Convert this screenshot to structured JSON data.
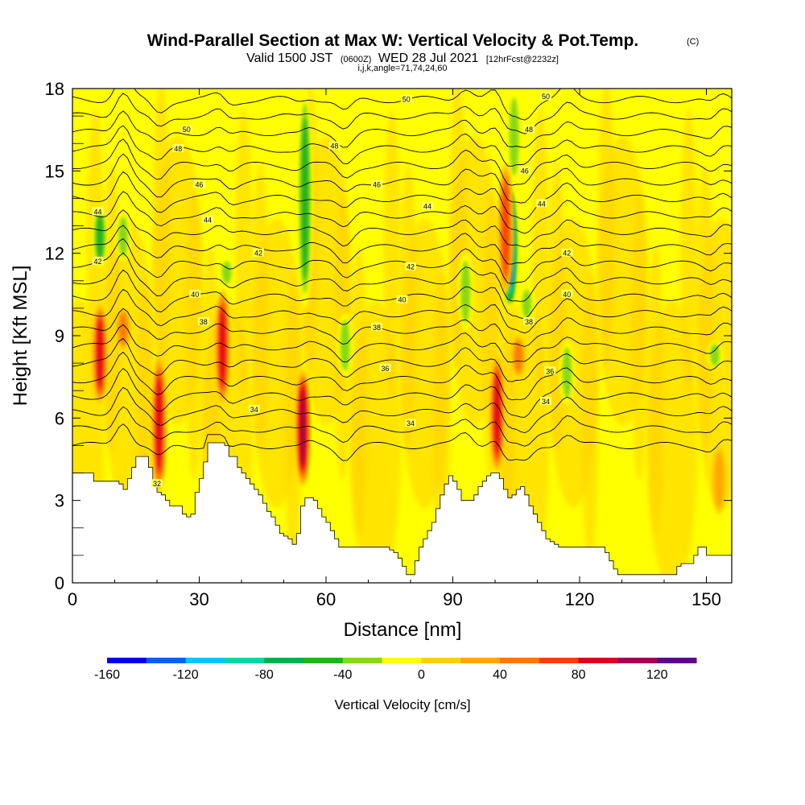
{
  "header": {
    "title_main": "Wind-Parallel Section at Max W: Vertical Velocity & Pot.Temp.",
    "title_mark": "(C)",
    "subtitle_a": "Valid 1500 JST",
    "subtitle_b": "(0600Z)",
    "subtitle_c": "WED 28 Jul 2021",
    "subtitle_d": "[12hrFcst@2232z]",
    "subtitle_small": "i,j,k,angle=71,74,24,60"
  },
  "colors": {
    "background_field": "#ffff00",
    "terrain_fill": "#ffffff",
    "contour_line": "#000000"
  },
  "chart_data": {
    "type": "heatmap",
    "xlabel": "Distance [nm]",
    "ylabel": "Height [Kft MSL]",
    "xlim": [
      0,
      156
    ],
    "ylim": [
      0,
      18
    ],
    "x_ticks": [
      0,
      30,
      60,
      90,
      120,
      150
    ],
    "y_ticks": [
      0,
      3,
      6,
      9,
      12,
      15,
      18
    ],
    "colorbar": {
      "title": "Vertical Velocity [cm/s]",
      "tick_values": [
        -160,
        -120,
        -80,
        -40,
        0,
        40,
        80,
        120
      ],
      "levels": [
        -160,
        -140,
        -120,
        -100,
        -80,
        -60,
        -40,
        -20,
        0,
        20,
        40,
        60,
        80,
        100,
        120,
        140
      ],
      "colors": [
        "#0000ee",
        "#0060f0",
        "#00c8f0",
        "#00d8a8",
        "#00b050",
        "#22b022",
        "#88d818",
        "#ffff00",
        "#ffd000",
        "#ffa800",
        "#ff7800",
        "#ff3c00",
        "#dd0022",
        "#a00055",
        "#600090"
      ]
    },
    "terrain_height_kft": [
      [
        0,
        4.0
      ],
      [
        1,
        4.0
      ],
      [
        2,
        4.0
      ],
      [
        3,
        4.0
      ],
      [
        4,
        4.0
      ],
      [
        5,
        3.7
      ],
      [
        6,
        3.7
      ],
      [
        7,
        3.7
      ],
      [
        8,
        3.7
      ],
      [
        9,
        3.7
      ],
      [
        10,
        3.7
      ],
      [
        11,
        3.6
      ],
      [
        12,
        3.4
      ],
      [
        13,
        3.8
      ],
      [
        14,
        4.2
      ],
      [
        15,
        4.6
      ],
      [
        16,
        4.6
      ],
      [
        17,
        4.6
      ],
      [
        18,
        4.2
      ],
      [
        19,
        3.6
      ],
      [
        20,
        3.3
      ],
      [
        21,
        3.2
      ],
      [
        22,
        3.0
      ],
      [
        23,
        2.8
      ],
      [
        24,
        2.8
      ],
      [
        25,
        2.8
      ],
      [
        26,
        2.5
      ],
      [
        27,
        2.4
      ],
      [
        28,
        2.5
      ],
      [
        29,
        3.3
      ],
      [
        30,
        3.8
      ],
      [
        31,
        4.4
      ],
      [
        32,
        5.1
      ],
      [
        33,
        5.1
      ],
      [
        34,
        5.1
      ],
      [
        35,
        5.1
      ],
      [
        36,
        5.0
      ],
      [
        37,
        4.6
      ],
      [
        38,
        4.6
      ],
      [
        39,
        4.2
      ],
      [
        40,
        4.0
      ],
      [
        41,
        3.8
      ],
      [
        42,
        3.6
      ],
      [
        43,
        3.4
      ],
      [
        44,
        3.2
      ],
      [
        45,
        2.9
      ],
      [
        46,
        2.6
      ],
      [
        47,
        2.4
      ],
      [
        48,
        2.1
      ],
      [
        49,
        1.8
      ],
      [
        50,
        1.7
      ],
      [
        51,
        1.6
      ],
      [
        52,
        1.4
      ],
      [
        53,
        1.8
      ],
      [
        54,
        2.8
      ],
      [
        55,
        3.1
      ],
      [
        56,
        3.1
      ],
      [
        57,
        3.0
      ],
      [
        58,
        2.7
      ],
      [
        59,
        2.4
      ],
      [
        60,
        2.2
      ],
      [
        61,
        1.9
      ],
      [
        62,
        1.6
      ],
      [
        63,
        1.3
      ],
      [
        64,
        1.3
      ],
      [
        65,
        1.3
      ],
      [
        66,
        1.3
      ],
      [
        67,
        1.3
      ],
      [
        68,
        1.3
      ],
      [
        69,
        1.3
      ],
      [
        70,
        1.3
      ],
      [
        71,
        1.3
      ],
      [
        72,
        1.3
      ],
      [
        73,
        1.3
      ],
      [
        74,
        1.3
      ],
      [
        75,
        1.2
      ],
      [
        76,
        1.1
      ],
      [
        77,
        0.9
      ],
      [
        78,
        0.6
      ],
      [
        79,
        0.3
      ],
      [
        80,
        0.3
      ],
      [
        81,
        0.8
      ],
      [
        82,
        1.3
      ],
      [
        83,
        1.6
      ],
      [
        84,
        1.9
      ],
      [
        85,
        2.2
      ],
      [
        86,
        2.7
      ],
      [
        87,
        3.2
      ],
      [
        88,
        3.6
      ],
      [
        89,
        3.9
      ],
      [
        90,
        3.7
      ],
      [
        91,
        3.4
      ],
      [
        92,
        3.0
      ],
      [
        93,
        3.0
      ],
      [
        94,
        3.0
      ],
      [
        95,
        3.2
      ],
      [
        96,
        3.5
      ],
      [
        97,
        3.7
      ],
      [
        98,
        3.9
      ],
      [
        99,
        4.0
      ],
      [
        100,
        4.0
      ],
      [
        101,
        3.8
      ],
      [
        102,
        3.4
      ],
      [
        103,
        3.1
      ],
      [
        104,
        3.2
      ],
      [
        105,
        3.4
      ],
      [
        106,
        3.5
      ],
      [
        107,
        3.2
      ],
      [
        108,
        2.8
      ],
      [
        109,
        2.5
      ],
      [
        110,
        2.2
      ],
      [
        111,
        1.9
      ],
      [
        112,
        1.6
      ],
      [
        113,
        1.5
      ],
      [
        114,
        1.4
      ],
      [
        115,
        1.3
      ],
      [
        116,
        1.3
      ],
      [
        117,
        1.3
      ],
      [
        118,
        1.3
      ],
      [
        119,
        1.3
      ],
      [
        120,
        1.3
      ],
      [
        121,
        1.3
      ],
      [
        122,
        1.3
      ],
      [
        123,
        1.3
      ],
      [
        124,
        1.3
      ],
      [
        125,
        1.3
      ],
      [
        126,
        1.1
      ],
      [
        127,
        0.8
      ],
      [
        128,
        0.5
      ],
      [
        129,
        0.3
      ],
      [
        130,
        0.3
      ],
      [
        131,
        0.3
      ],
      [
        132,
        0.3
      ],
      [
        133,
        0.3
      ],
      [
        134,
        0.3
      ],
      [
        135,
        0.3
      ],
      [
        136,
        0.3
      ],
      [
        137,
        0.3
      ],
      [
        138,
        0.3
      ],
      [
        139,
        0.3
      ],
      [
        140,
        0.3
      ],
      [
        141,
        0.3
      ],
      [
        142,
        0.3
      ],
      [
        143,
        0.6
      ],
      [
        144,
        0.7
      ],
      [
        145,
        0.7
      ],
      [
        146,
        0.7
      ],
      [
        147,
        1.0
      ],
      [
        148,
        1.3
      ],
      [
        149,
        1.3
      ],
      [
        150,
        1.0
      ],
      [
        151,
        1.0
      ],
      [
        152,
        1.0
      ],
      [
        153,
        1.0
      ],
      [
        154,
        1.0
      ],
      [
        155,
        1.0
      ],
      [
        156,
        1.0
      ]
    ],
    "updraft_cells": [
      {
        "x": 6.5,
        "y_bottom": 6.5,
        "y_top": 10.2,
        "w_max": 110
      },
      {
        "x": 20.5,
        "y_bottom": 3.3,
        "y_top": 8.3,
        "w_max": 100
      },
      {
        "x": 35.5,
        "y_bottom": 6.5,
        "y_top": 10.7,
        "w_max": 110
      },
      {
        "x": 54.5,
        "y_bottom": 3.5,
        "y_top": 7.8,
        "w_max": 130
      },
      {
        "x": 100.5,
        "y_bottom": 4.0,
        "y_top": 8.3,
        "w_max": 100
      },
      {
        "x": 102.5,
        "y_bottom": 10.5,
        "y_top": 15.3,
        "w_max": 90
      },
      {
        "x": 12.0,
        "y_bottom": 8.5,
        "y_top": 10.0,
        "w_max": 60
      },
      {
        "x": 105.5,
        "y_bottom": 7.5,
        "y_top": 9.0,
        "w_max": 60
      },
      {
        "x": 153.0,
        "y_bottom": 2.5,
        "y_top": 5.0,
        "w_max": 55
      }
    ],
    "downdraft_cells": [
      {
        "x": 6.5,
        "y_bottom": 11.5,
        "y_top": 13.7,
        "w_min": -60
      },
      {
        "x": 12.0,
        "y_bottom": 11.7,
        "y_top": 13.5,
        "w_min": -45
      },
      {
        "x": 36.5,
        "y_bottom": 10.8,
        "y_top": 11.8,
        "w_min": -45
      },
      {
        "x": 55.0,
        "y_bottom": 10.0,
        "y_top": 18.0,
        "w_min": -60
      },
      {
        "x": 64.5,
        "y_bottom": 7.5,
        "y_top": 9.8,
        "w_min": -45
      },
      {
        "x": 93.0,
        "y_bottom": 9.2,
        "y_top": 12.0,
        "w_min": -55
      },
      {
        "x": 103.5,
        "y_bottom": 10.0,
        "y_top": 14.5,
        "w_min": -160
      },
      {
        "x": 104.5,
        "y_bottom": 14.5,
        "y_top": 18.0,
        "w_min": -55
      },
      {
        "x": 107.5,
        "y_bottom": 9.5,
        "y_top": 10.8,
        "w_min": -50
      },
      {
        "x": 117.0,
        "y_bottom": 6.5,
        "y_top": 8.8,
        "w_min": -45
      },
      {
        "x": 152.0,
        "y_bottom": 7.8,
        "y_top": 8.8,
        "w_min": -40
      }
    ],
    "theta_contour_labels": [
      {
        "text": "50",
        "x": 27,
        "y": 16.5
      },
      {
        "text": "50",
        "x": 79,
        "y": 17.6
      },
      {
        "text": "50",
        "x": 112,
        "y": 17.7
      },
      {
        "text": "48",
        "x": 25,
        "y": 15.8
      },
      {
        "text": "48",
        "x": 62,
        "y": 15.9
      },
      {
        "text": "48",
        "x": 108,
        "y": 16.5
      },
      {
        "text": "46",
        "x": 30,
        "y": 14.5
      },
      {
        "text": "46",
        "x": 72,
        "y": 14.5
      },
      {
        "text": "46",
        "x": 107,
        "y": 15.0
      },
      {
        "text": "44",
        "x": 6,
        "y": 13.5
      },
      {
        "text": "44",
        "x": 32,
        "y": 13.2
      },
      {
        "text": "44",
        "x": 84,
        "y": 13.7
      },
      {
        "text": "44",
        "x": 111,
        "y": 13.8
      },
      {
        "text": "42",
        "x": 6,
        "y": 11.7
      },
      {
        "text": "42",
        "x": 44,
        "y": 12.0
      },
      {
        "text": "42",
        "x": 80,
        "y": 11.5
      },
      {
        "text": "42",
        "x": 117,
        "y": 12.0
      },
      {
        "text": "40",
        "x": 29,
        "y": 10.5
      },
      {
        "text": "40",
        "x": 78,
        "y": 10.3
      },
      {
        "text": "40",
        "x": 117,
        "y": 10.5
      },
      {
        "text": "38",
        "x": 31,
        "y": 9.5
      },
      {
        "text": "38",
        "x": 72,
        "y": 9.3
      },
      {
        "text": "38",
        "x": 108,
        "y": 9.5
      },
      {
        "text": "36",
        "x": 74,
        "y": 7.8
      },
      {
        "text": "36",
        "x": 113,
        "y": 7.7
      },
      {
        "text": "34",
        "x": 43,
        "y": 6.3
      },
      {
        "text": "34",
        "x": 80,
        "y": 5.8
      },
      {
        "text": "34",
        "x": 112,
        "y": 6.6
      },
      {
        "text": "32",
        "x": 20,
        "y": 3.6
      }
    ]
  }
}
